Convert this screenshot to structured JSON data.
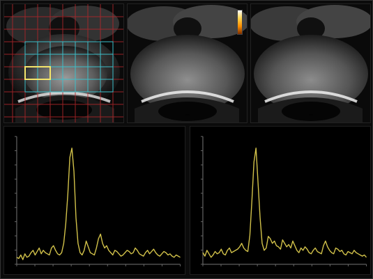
{
  "top_panels": [
    {
      "corner_label": "",
      "overlay_label": "",
      "has_grid": true
    },
    {
      "corner_label": "",
      "overlay_label": "",
      "has_colorbar": true
    },
    {
      "corner_label": "",
      "overlay_label": ""
    }
  ],
  "spectra": [
    {
      "left_label": "",
      "header_line1": "",
      "header_line2": "",
      "peak_label": "",
      "chart_data": {
        "type": "line",
        "x": [
          0,
          1,
          2,
          3,
          4,
          5,
          6,
          7,
          8,
          9,
          10,
          11,
          12,
          13,
          14,
          15,
          16,
          17,
          18,
          19,
          20,
          21,
          22,
          23,
          24,
          25,
          26,
          27,
          28,
          29,
          30,
          31,
          32,
          33,
          34,
          35,
          36,
          37,
          38,
          39,
          40,
          41,
          42,
          43,
          44,
          45,
          46,
          47,
          48,
          49,
          50,
          51,
          52,
          53,
          54,
          55,
          56,
          57,
          58,
          59,
          60,
          61,
          62,
          63,
          64,
          65,
          66,
          67,
          68,
          69,
          70,
          71,
          72,
          73,
          74,
          75,
          76,
          77,
          78,
          79,
          80
        ],
        "values": [
          6,
          5,
          8,
          4,
          9,
          6,
          7,
          10,
          12,
          8,
          11,
          14,
          9,
          12,
          10,
          9,
          8,
          14,
          16,
          12,
          9,
          8,
          10,
          18,
          35,
          60,
          92,
          100,
          80,
          40,
          18,
          10,
          8,
          12,
          20,
          15,
          10,
          9,
          8,
          14,
          22,
          26,
          18,
          14,
          16,
          12,
          10,
          8,
          12,
          11,
          9,
          7,
          8,
          10,
          12,
          11,
          9,
          10,
          14,
          12,
          9,
          8,
          7,
          10,
          12,
          9,
          11,
          13,
          10,
          8,
          7,
          9,
          11,
          10,
          8,
          9,
          7,
          6,
          8,
          7,
          6
        ],
        "ylim": [
          0,
          110
        ],
        "grid": false,
        "color": "#d2c24a"
      }
    },
    {
      "left_label": "",
      "header_line1": "",
      "header_line2": "",
      "peak_label": "",
      "chart_data": {
        "type": "line",
        "x": [
          0,
          1,
          2,
          3,
          4,
          5,
          6,
          7,
          8,
          9,
          10,
          11,
          12,
          13,
          14,
          15,
          16,
          17,
          18,
          19,
          20,
          21,
          22,
          23,
          24,
          25,
          26,
          27,
          28,
          29,
          30,
          31,
          32,
          33,
          34,
          35,
          36,
          37,
          38,
          39,
          40,
          41,
          42,
          43,
          44,
          45,
          46,
          47,
          48,
          49,
          50,
          51,
          52,
          53,
          54,
          55,
          56,
          57,
          58,
          59,
          60,
          61,
          62,
          63,
          64,
          65,
          66,
          67,
          68,
          69,
          70,
          71,
          72,
          73,
          74,
          75,
          76,
          77,
          78,
          79,
          80
        ],
        "values": [
          10,
          7,
          12,
          9,
          6,
          8,
          11,
          9,
          10,
          13,
          9,
          8,
          12,
          14,
          10,
          11,
          12,
          13,
          15,
          18,
          14,
          12,
          11,
          25,
          55,
          88,
          100,
          70,
          40,
          18,
          12,
          14,
          24,
          22,
          18,
          20,
          16,
          15,
          13,
          21,
          18,
          15,
          17,
          14,
          20,
          16,
          12,
          10,
          14,
          12,
          15,
          13,
          10,
          9,
          12,
          14,
          11,
          10,
          9,
          16,
          20,
          15,
          12,
          10,
          9,
          14,
          13,
          11,
          12,
          9,
          8,
          11,
          10,
          9,
          12,
          10,
          9,
          8,
          7,
          8,
          6
        ],
        "ylim": [
          0,
          110
        ],
        "grid": false,
        "color": "#d2c24a"
      }
    }
  ]
}
